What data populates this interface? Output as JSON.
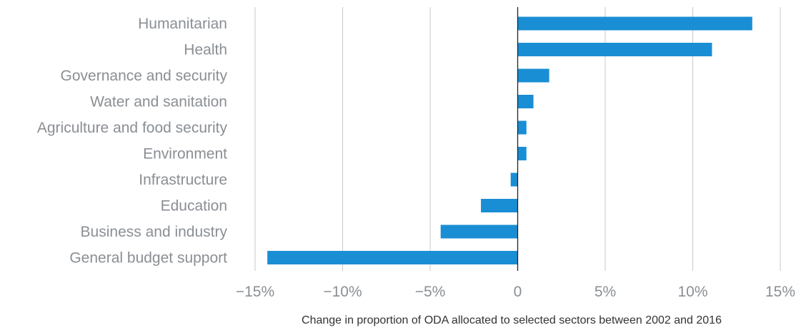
{
  "chart_data": {
    "type": "bar",
    "orientation": "horizontal",
    "categories": [
      "Humanitarian",
      "Health",
      "Governance and security",
      "Water and sanitation",
      "Agriculture and food security",
      "Environment",
      "Infrastructure",
      "Education",
      "Business and industry",
      "General budget support"
    ],
    "values": [
      13.4,
      11.1,
      1.8,
      0.9,
      0.5,
      0.5,
      -0.4,
      -2.1,
      -4.4,
      -14.3
    ],
    "xlabel": "Change in proportion of ODA allocated to selected sectors between 2002 and 2016",
    "ylabel": "",
    "xlim": [
      -15,
      15
    ],
    "xticks": [
      -15,
      -10,
      -5,
      0,
      5,
      10,
      15
    ],
    "xtick_labels": [
      "−15%",
      "−10%",
      "−5%",
      "0",
      "5%",
      "10%",
      "15%"
    ],
    "grid": "vertical",
    "legend": "none",
    "colors": {
      "bar": "#1a8ed4"
    }
  }
}
